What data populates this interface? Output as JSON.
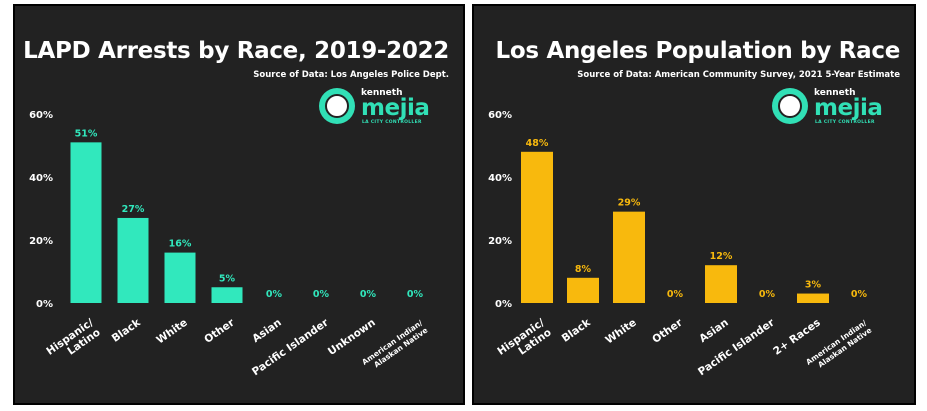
{
  "chart_data": [
    {
      "type": "bar",
      "title": "LAPD Arrests by Race, 2019-2022",
      "source": "Source of Data: Los Angeles Police Dept.",
      "categories": [
        "Hispanic/\nLatino",
        "Black",
        "White",
        "Other",
        "Asian",
        "Pacific Islander",
        "Unknown",
        "American Indian/\nAlaskan Native"
      ],
      "values": [
        51,
        27,
        16,
        5,
        0,
        0,
        0,
        0
      ],
      "value_labels": [
        "51%",
        "27%",
        "16%",
        "5%",
        "0%",
        "0%",
        "0%",
        "0%"
      ],
      "ytick_labels": [
        "0%",
        "20%",
        "40%",
        "60%"
      ],
      "yticks": [
        0,
        20,
        40,
        60
      ],
      "ylim": [
        0,
        60
      ],
      "color": "#31e8bd",
      "xlabel": "",
      "ylabel": ""
    },
    {
      "type": "bar",
      "title": "Los Angeles Population by Race",
      "source": "Source of Data: American Community Survey, 2021 5-Year Estimate",
      "categories": [
        "Hispanic/\nLatino",
        "Black",
        "White",
        "Other",
        "Asian",
        "Pacific Islander",
        "2+ Races",
        "American Indian/\nAlaskan Native"
      ],
      "values": [
        48,
        8,
        29,
        0,
        12,
        0,
        3,
        0
      ],
      "value_labels": [
        "48%",
        "8%",
        "29%",
        "0%",
        "12%",
        "0%",
        "3%",
        "0%"
      ],
      "ytick_labels": [
        "0%",
        "20%",
        "40%",
        "60%"
      ],
      "yticks": [
        0,
        20,
        40,
        60
      ],
      "ylim": [
        0,
        60
      ],
      "color": "#f8b90d",
      "xlabel": "",
      "ylabel": ""
    }
  ],
  "logo": {
    "first": "kenneth",
    "last": "mejia",
    "role": "LA CITY CONTROLLER",
    "seal_text": "LOS ANGELES CITY CONTROLLER"
  }
}
